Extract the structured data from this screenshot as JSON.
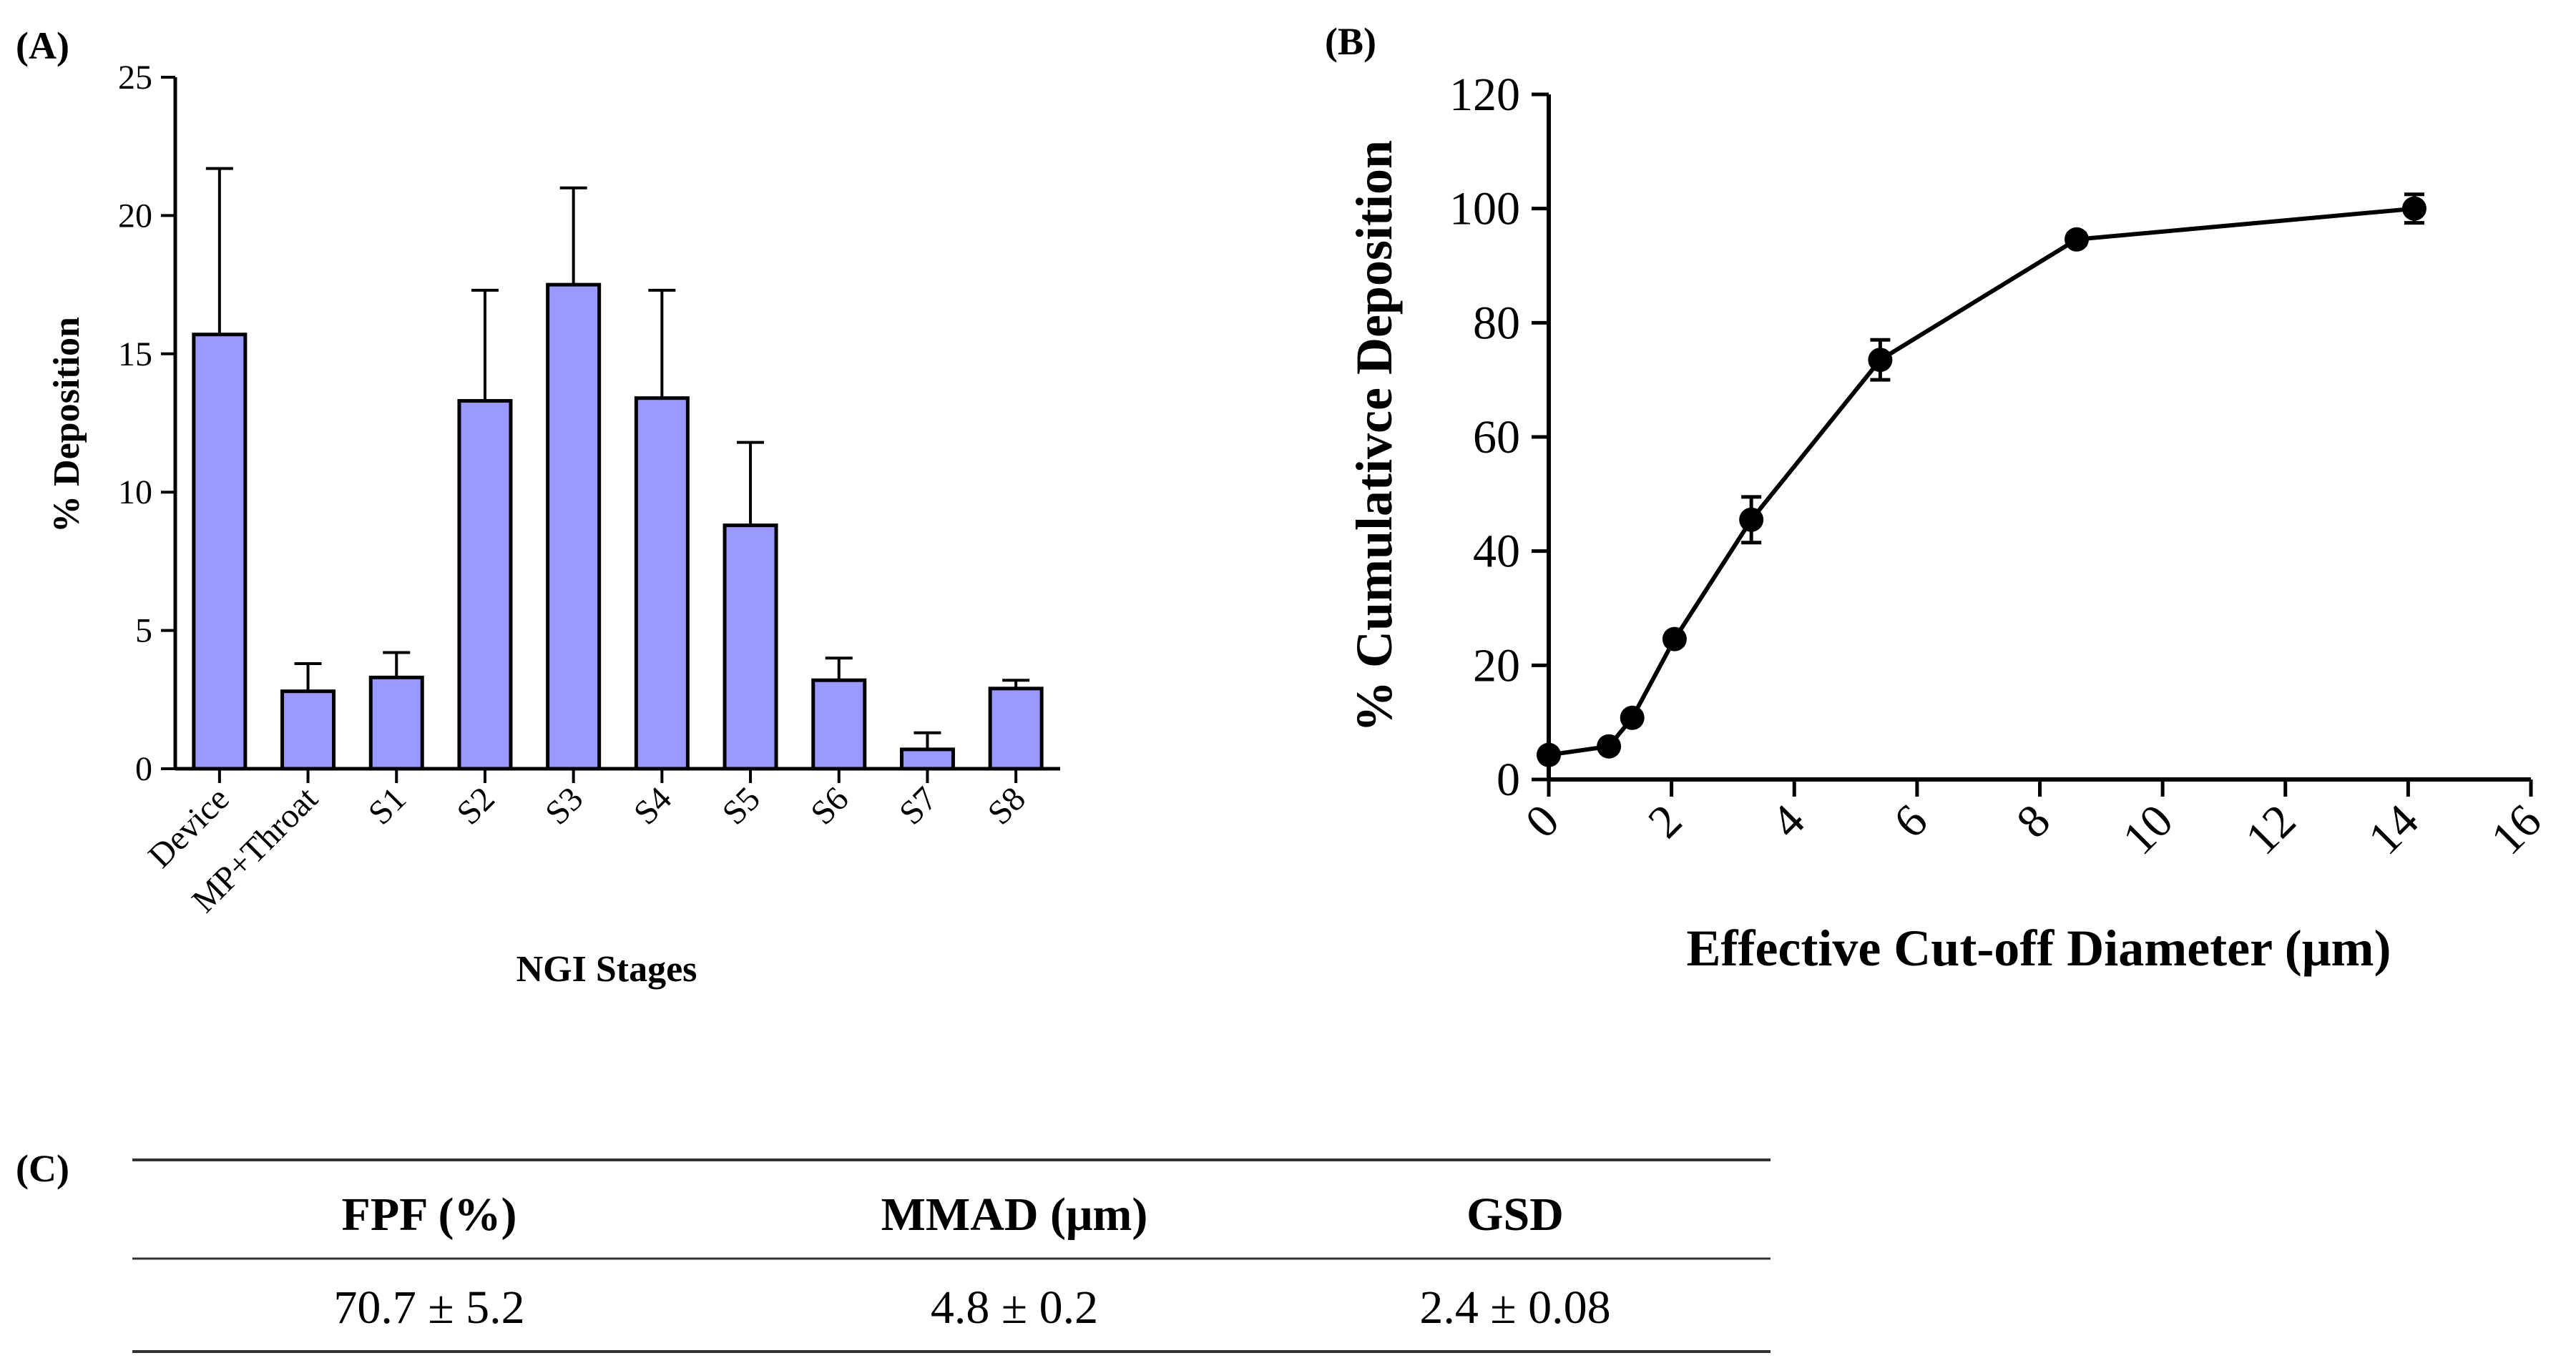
{
  "panels": {
    "a_label": "(A)",
    "b_label": "(B)",
    "c_label": "(C)"
  },
  "chart_data": [
    {
      "id": "A",
      "type": "bar",
      "title": "",
      "xlabel": "NGI Stages",
      "ylabel": "% Deposition",
      "ylim": [
        0,
        25
      ],
      "yticks": [
        0,
        5,
        10,
        15,
        20,
        25
      ],
      "categories": [
        "Device",
        "MP+Throat",
        "S1",
        "S2",
        "S3",
        "S4",
        "S5",
        "S6",
        "S7",
        "S8"
      ],
      "values": [
        15.7,
        2.8,
        3.3,
        13.3,
        17.5,
        13.4,
        8.8,
        3.2,
        0.7,
        2.9
      ],
      "errors": [
        6.0,
        1.0,
        0.9,
        4.0,
        3.5,
        3.9,
        3.0,
        0.8,
        0.6,
        0.3
      ],
      "bar_color": "#9999ff",
      "grid": false
    },
    {
      "id": "B",
      "type": "line",
      "title": "",
      "xlabel": "Effective Cut-off Diameter (μm)",
      "ylabel": "% Cumulativce Deposition",
      "xlim": [
        0,
        16
      ],
      "ylim": [
        0,
        120
      ],
      "xticks": [
        0,
        2,
        4,
        6,
        8,
        10,
        12,
        14,
        16
      ],
      "yticks": [
        0,
        20,
        40,
        60,
        80,
        100,
        120
      ],
      "x": [
        0.0,
        0.98,
        1.36,
        2.05,
        3.3,
        5.4,
        8.6,
        14.1
      ],
      "y": [
        4.3,
        5.8,
        10.8,
        24.6,
        45.5,
        73.5,
        94.6,
        100.0
      ],
      "errors": [
        0.5,
        0.5,
        0.8,
        1.0,
        4.0,
        3.5,
        1.0,
        2.5
      ],
      "marker": "circle",
      "line_color": "#000000",
      "grid": false
    }
  ],
  "table": {
    "headers": [
      "FPF (%)",
      "MMAD (μm)",
      "GSD"
    ],
    "rows": [
      [
        "70.7 ± 5.2",
        "4.8 ± 0.2",
        "2.4 ± 0.08"
      ]
    ]
  }
}
